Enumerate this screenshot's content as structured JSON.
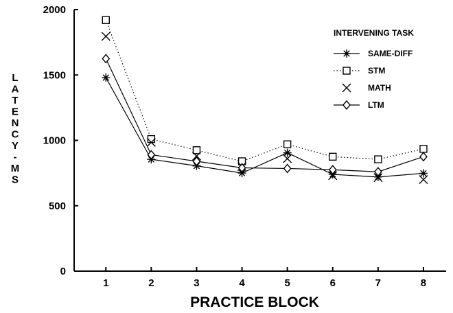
{
  "chart_data": {
    "type": "line",
    "xlabel": "PRACTICE BLOCK",
    "ylabel": "LATENCY - MS",
    "x": [
      1,
      2,
      3,
      4,
      5,
      6,
      7,
      8
    ],
    "xlim": [
      0.3,
      8.5
    ],
    "ylim": [
      0,
      2000
    ],
    "yticks": [
      0,
      500,
      1000,
      1500,
      2000
    ],
    "grid": false,
    "legend": {
      "title": "INTERVENING TASK",
      "placement": "top-right"
    },
    "series": [
      {
        "name": "SAME-DIFF",
        "marker": "asterisk",
        "line": "solid",
        "values": [
          1480,
          855,
          805,
          750,
          905,
          740,
          720,
          748
        ]
      },
      {
        "name": "STM",
        "marker": "square",
        "line": "dotted",
        "values": [
          1920,
          1010,
          925,
          840,
          970,
          875,
          855,
          935
        ]
      },
      {
        "name": "MATH",
        "marker": "x",
        "line": "none",
        "values": [
          1795,
          985,
          880,
          800,
          860,
          730,
          715,
          700
        ]
      },
      {
        "name": "LTM",
        "marker": "diamond",
        "line": "solid",
        "values": [
          1625,
          890,
          840,
          790,
          785,
          775,
          760,
          875
        ]
      }
    ]
  }
}
